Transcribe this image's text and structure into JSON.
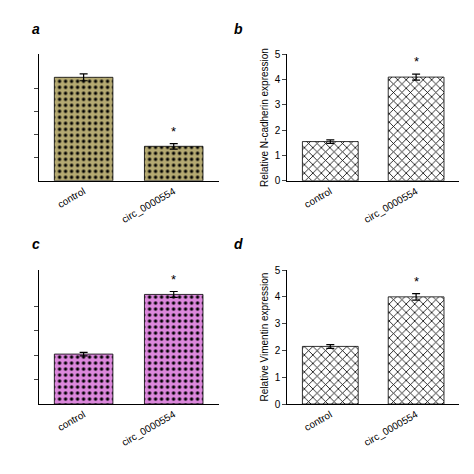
{
  "chart_data": [
    {
      "type": "bar",
      "title": "a",
      "categories": [
        "control",
        "circ_0000554"
      ],
      "values": [
        4.5,
        1.5
      ],
      "errors": [
        0.15,
        0.12
      ],
      "color": "#b5aa72",
      "marker": "dots",
      "ylim": [
        0,
        5.5
      ],
      "yticks": [
        1,
        2,
        3,
        4
      ],
      "tick_labels": "x",
      "grid": false,
      "annotations": [
        {
          "text": "*",
          "category": "circ_0000554"
        }
      ]
    },
    {
      "type": "bar",
      "title": "b",
      "ylabel": "Relative N-cadherin expression",
      "categories": [
        "control",
        "circ_0000554"
      ],
      "values": [
        1.55,
        4.1
      ],
      "errors": [
        0.07,
        0.12
      ],
      "color": "#ffffff",
      "marker": "crosses",
      "ylim": [
        0,
        5
      ],
      "yticks": [
        0,
        1,
        2,
        3,
        4,
        5
      ],
      "grid": false,
      "annotations": [
        {
          "text": "*",
          "category": "circ_0000554"
        }
      ]
    },
    {
      "type": "bar",
      "title": "c",
      "categories": [
        "control",
        "circ_0000554"
      ],
      "values": [
        2.05,
        4.5
      ],
      "errors": [
        0.07,
        0.12
      ],
      "color": "#dd88dd",
      "marker": "dots",
      "ylim": [
        0,
        5.5
      ],
      "yticks": [
        1,
        2,
        3,
        4
      ],
      "tick_labels": "x",
      "grid": false,
      "annotations": [
        {
          "text": "*",
          "category": "circ_0000554"
        }
      ]
    },
    {
      "type": "bar",
      "title": "d",
      "ylabel": "Relative Vimentin expression",
      "categories": [
        "control",
        "circ_0000554"
      ],
      "values": [
        2.15,
        4.0
      ],
      "errors": [
        0.07,
        0.12
      ],
      "color": "#ffffff",
      "marker": "crosses",
      "ylim": [
        0,
        5
      ],
      "yticks": [
        0,
        1,
        2,
        3,
        4,
        5
      ],
      "grid": false,
      "annotations": [
        {
          "text": "*",
          "category": "circ_0000554"
        }
      ]
    }
  ]
}
